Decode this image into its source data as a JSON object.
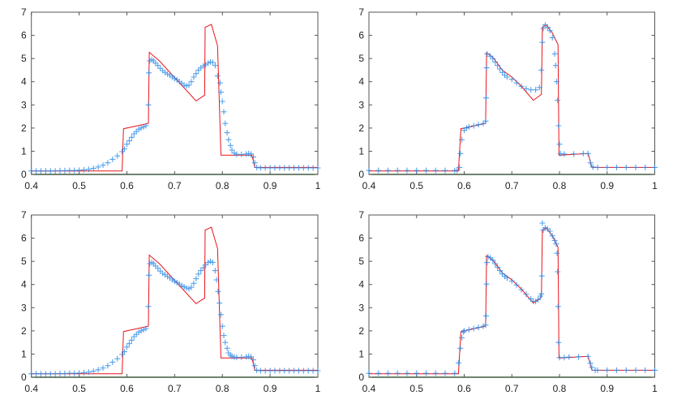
{
  "chart_data": [
    {
      "type": "line+scatter",
      "panel": "top-left",
      "xlim": [
        0.4,
        1.0
      ],
      "ylim": [
        0,
        7
      ],
      "xticks": [
        0.4,
        0.5,
        0.6,
        0.7,
        0.8,
        0.9,
        1
      ],
      "yticks": [
        0,
        1,
        2,
        3,
        4,
        5,
        6,
        7
      ],
      "grid": false,
      "colors": {
        "line": "#e8141c",
        "markers": "#2b8be8"
      },
      "line": {
        "x": [
          0.4,
          0.59,
          0.593,
          0.645,
          0.647,
          0.668,
          0.745,
          0.763,
          0.764,
          0.777,
          0.79,
          0.797,
          0.862,
          0.868,
          1.0
        ],
        "y": [
          0.15,
          0.15,
          1.97,
          2.2,
          5.27,
          4.9,
          3.17,
          3.42,
          6.35,
          6.47,
          5.55,
          0.83,
          0.83,
          0.3,
          0.3
        ]
      },
      "markers": {
        "x": [
          0.4,
          0.41,
          0.42,
          0.43,
          0.44,
          0.45,
          0.46,
          0.47,
          0.48,
          0.49,
          0.5,
          0.51,
          0.52,
          0.53,
          0.54,
          0.55,
          0.56,
          0.57,
          0.58,
          0.59,
          0.595,
          0.6,
          0.605,
          0.61,
          0.615,
          0.62,
          0.625,
          0.63,
          0.635,
          0.64,
          0.645,
          0.646,
          0.648,
          0.652,
          0.656,
          0.66,
          0.665,
          0.67,
          0.675,
          0.68,
          0.685,
          0.69,
          0.695,
          0.7,
          0.705,
          0.71,
          0.715,
          0.72,
          0.725,
          0.73,
          0.735,
          0.74,
          0.745,
          0.75,
          0.755,
          0.76,
          0.765,
          0.77,
          0.775,
          0.78,
          0.785,
          0.79,
          0.795,
          0.797,
          0.8,
          0.803,
          0.806,
          0.81,
          0.813,
          0.817,
          0.82,
          0.825,
          0.83,
          0.84,
          0.85,
          0.855,
          0.86,
          0.865,
          0.868,
          0.872,
          0.88,
          0.89,
          0.9,
          0.91,
          0.92,
          0.93,
          0.94,
          0.95,
          0.96,
          0.97,
          0.98,
          0.99,
          1.0
        ],
        "y": [
          0.15,
          0.15,
          0.15,
          0.15,
          0.15,
          0.15,
          0.16,
          0.16,
          0.17,
          0.17,
          0.18,
          0.2,
          0.22,
          0.26,
          0.32,
          0.4,
          0.5,
          0.65,
          0.8,
          0.98,
          1.1,
          1.3,
          1.45,
          1.6,
          1.75,
          1.85,
          1.95,
          2.0,
          2.05,
          2.1,
          3.0,
          4.38,
          4.9,
          4.95,
          4.9,
          4.8,
          4.7,
          4.58,
          4.48,
          4.4,
          4.33,
          4.27,
          4.2,
          4.14,
          4.08,
          4.0,
          3.93,
          3.85,
          3.82,
          3.85,
          4.0,
          4.2,
          4.35,
          4.5,
          4.6,
          4.68,
          4.73,
          4.8,
          4.85,
          4.83,
          4.7,
          4.25,
          3.95,
          3.55,
          3.15,
          2.7,
          2.2,
          1.8,
          1.5,
          1.25,
          1.05,
          0.92,
          0.87,
          0.86,
          0.88,
          0.9,
          0.88,
          0.75,
          0.5,
          0.3,
          0.28,
          0.28,
          0.28,
          0.28,
          0.28,
          0.28,
          0.28,
          0.28,
          0.28,
          0.28,
          0.28,
          0.28,
          0.28
        ]
      }
    },
    {
      "type": "line+scatter",
      "panel": "top-right",
      "xlim": [
        0.4,
        1.0
      ],
      "ylim": [
        0,
        7
      ],
      "xticks": [
        0.4,
        0.5,
        0.6,
        0.7,
        0.8,
        0.9,
        1
      ],
      "yticks": [
        0,
        1,
        2,
        3,
        4,
        5,
        6,
        7
      ],
      "grid": false,
      "colors": {
        "line": "#e8141c",
        "markers": "#2b8be8"
      },
      "line": {
        "x": [
          0.4,
          0.588,
          0.593,
          0.645,
          0.647,
          0.66,
          0.68,
          0.7,
          0.72,
          0.745,
          0.762,
          0.764,
          0.772,
          0.785,
          0.797,
          0.799,
          0.86,
          0.868,
          1.0
        ],
        "y": [
          0.15,
          0.15,
          1.97,
          2.2,
          5.25,
          5.05,
          4.5,
          4.2,
          3.8,
          3.2,
          3.45,
          6.35,
          6.45,
          6.1,
          5.6,
          0.83,
          0.9,
          0.3,
          0.3
        ]
      },
      "markers": {
        "x": [
          0.4,
          0.42,
          0.44,
          0.46,
          0.48,
          0.5,
          0.52,
          0.54,
          0.56,
          0.58,
          0.585,
          0.59,
          0.592,
          0.595,
          0.6,
          0.605,
          0.61,
          0.62,
          0.63,
          0.64,
          0.645,
          0.646,
          0.647,
          0.648,
          0.655,
          0.66,
          0.665,
          0.67,
          0.675,
          0.68,
          0.685,
          0.69,
          0.7,
          0.71,
          0.72,
          0.73,
          0.74,
          0.75,
          0.758,
          0.762,
          0.764,
          0.766,
          0.77,
          0.775,
          0.78,
          0.785,
          0.79,
          0.792,
          0.794,
          0.796,
          0.798,
          0.8,
          0.802,
          0.81,
          0.83,
          0.85,
          0.86,
          0.865,
          0.87,
          0.88,
          0.9,
          0.92,
          0.94,
          0.96,
          0.98,
          1.0
        ],
        "y": [
          0.17,
          0.17,
          0.17,
          0.17,
          0.17,
          0.17,
          0.17,
          0.17,
          0.17,
          0.17,
          0.18,
          0.3,
          0.9,
          1.5,
          1.9,
          2.0,
          2.05,
          2.1,
          2.15,
          2.2,
          2.3,
          3.3,
          4.6,
          5.2,
          5.1,
          5.0,
          4.85,
          4.7,
          4.55,
          4.4,
          4.28,
          4.2,
          4.1,
          3.95,
          3.8,
          3.7,
          3.65,
          3.65,
          3.75,
          4.5,
          5.7,
          6.3,
          6.45,
          6.35,
          6.2,
          5.9,
          5.2,
          4.7,
          4.0,
          3.2,
          2.1,
          1.3,
          0.9,
          0.88,
          0.88,
          0.9,
          0.9,
          0.5,
          0.32,
          0.3,
          0.3,
          0.3,
          0.3,
          0.3,
          0.3,
          0.3
        ]
      }
    },
    {
      "type": "line+scatter",
      "panel": "bottom-left",
      "xlim": [
        0.4,
        1.0
      ],
      "ylim": [
        0,
        7
      ],
      "xticks": [
        0.4,
        0.5,
        0.6,
        0.7,
        0.8,
        0.9,
        1
      ],
      "yticks": [
        0,
        1,
        2,
        3,
        4,
        5,
        6,
        7
      ],
      "grid": false,
      "colors": {
        "line": "#e8141c",
        "markers": "#2b8be8"
      },
      "line": {
        "x": [
          0.4,
          0.59,
          0.593,
          0.645,
          0.647,
          0.668,
          0.745,
          0.763,
          0.764,
          0.777,
          0.79,
          0.797,
          0.862,
          0.868,
          1.0
        ],
        "y": [
          0.15,
          0.15,
          1.97,
          2.2,
          5.27,
          4.9,
          3.17,
          3.42,
          6.35,
          6.47,
          5.55,
          0.83,
          0.83,
          0.3,
          0.3
        ]
      },
      "markers": {
        "x": [
          0.4,
          0.41,
          0.42,
          0.43,
          0.44,
          0.45,
          0.46,
          0.47,
          0.48,
          0.49,
          0.5,
          0.51,
          0.52,
          0.53,
          0.54,
          0.55,
          0.56,
          0.57,
          0.58,
          0.59,
          0.595,
          0.6,
          0.605,
          0.61,
          0.615,
          0.62,
          0.625,
          0.63,
          0.635,
          0.64,
          0.645,
          0.646,
          0.648,
          0.652,
          0.656,
          0.66,
          0.665,
          0.67,
          0.675,
          0.68,
          0.685,
          0.69,
          0.695,
          0.7,
          0.705,
          0.71,
          0.715,
          0.72,
          0.725,
          0.73,
          0.735,
          0.74,
          0.745,
          0.75,
          0.755,
          0.76,
          0.765,
          0.77,
          0.775,
          0.78,
          0.785,
          0.788,
          0.791,
          0.794,
          0.797,
          0.8,
          0.803,
          0.806,
          0.81,
          0.813,
          0.817,
          0.82,
          0.825,
          0.83,
          0.84,
          0.85,
          0.855,
          0.86,
          0.865,
          0.868,
          0.872,
          0.88,
          0.89,
          0.9,
          0.91,
          0.92,
          0.93,
          0.94,
          0.95,
          0.96,
          0.97,
          0.98,
          0.99,
          1.0
        ],
        "y": [
          0.15,
          0.15,
          0.15,
          0.15,
          0.15,
          0.15,
          0.16,
          0.16,
          0.17,
          0.17,
          0.18,
          0.2,
          0.22,
          0.26,
          0.32,
          0.4,
          0.5,
          0.65,
          0.8,
          0.98,
          1.1,
          1.3,
          1.45,
          1.6,
          1.75,
          1.85,
          1.95,
          2.0,
          2.05,
          2.1,
          3.05,
          4.4,
          4.9,
          4.95,
          4.9,
          4.8,
          4.7,
          4.58,
          4.48,
          4.42,
          4.35,
          4.28,
          4.2,
          4.14,
          4.08,
          4.02,
          3.95,
          3.9,
          3.85,
          3.82,
          3.88,
          4.05,
          4.25,
          4.45,
          4.6,
          4.72,
          4.85,
          4.95,
          5.0,
          4.95,
          4.6,
          4.2,
          3.7,
          3.2,
          2.7,
          2.2,
          1.8,
          1.5,
          1.25,
          1.05,
          0.95,
          0.9,
          0.87,
          0.86,
          0.86,
          0.88,
          0.9,
          0.88,
          0.75,
          0.5,
          0.3,
          0.28,
          0.28,
          0.28,
          0.28,
          0.28,
          0.28,
          0.28,
          0.28,
          0.28,
          0.28,
          0.28,
          0.28,
          0.28
        ]
      }
    },
    {
      "type": "line+scatter",
      "panel": "bottom-right",
      "xlim": [
        0.4,
        1.0
      ],
      "ylim": [
        0,
        7
      ],
      "xticks": [
        0.4,
        0.5,
        0.6,
        0.7,
        0.8,
        0.9,
        1
      ],
      "yticks": [
        0,
        1,
        2,
        3,
        4,
        5,
        6,
        7
      ],
      "grid": false,
      "colors": {
        "line": "#e8141c",
        "markers": "#2b8be8"
      },
      "line": {
        "x": [
          0.4,
          0.588,
          0.593,
          0.645,
          0.647,
          0.66,
          0.68,
          0.7,
          0.72,
          0.745,
          0.762,
          0.764,
          0.772,
          0.785,
          0.797,
          0.799,
          0.86,
          0.868,
          1.0
        ],
        "y": [
          0.15,
          0.15,
          1.97,
          2.2,
          5.25,
          5.05,
          4.5,
          4.2,
          3.8,
          3.2,
          3.45,
          6.35,
          6.45,
          6.1,
          5.6,
          0.83,
          0.9,
          0.3,
          0.3
        ]
      },
      "markers": {
        "x": [
          0.4,
          0.42,
          0.44,
          0.46,
          0.48,
          0.5,
          0.52,
          0.54,
          0.56,
          0.58,
          0.588,
          0.592,
          0.595,
          0.598,
          0.6,
          0.61,
          0.62,
          0.63,
          0.64,
          0.645,
          0.646,
          0.647,
          0.648,
          0.65,
          0.655,
          0.66,
          0.665,
          0.67,
          0.675,
          0.68,
          0.685,
          0.69,
          0.7,
          0.71,
          0.72,
          0.73,
          0.74,
          0.745,
          0.75,
          0.755,
          0.76,
          0.762,
          0.763,
          0.764,
          0.766,
          0.77,
          0.775,
          0.78,
          0.785,
          0.79,
          0.793,
          0.795,
          0.796,
          0.797,
          0.798,
          0.8,
          0.81,
          0.82,
          0.84,
          0.86,
          0.865,
          0.868,
          0.875,
          0.88,
          0.9,
          0.92,
          0.94,
          0.96,
          0.98,
          1.0
        ],
        "y": [
          0.17,
          0.17,
          0.17,
          0.17,
          0.17,
          0.17,
          0.17,
          0.17,
          0.17,
          0.17,
          0.62,
          1.25,
          1.7,
          1.95,
          2.0,
          2.05,
          2.1,
          2.15,
          2.2,
          2.25,
          2.65,
          4.02,
          4.95,
          5.2,
          5.15,
          5.05,
          4.9,
          4.75,
          4.6,
          4.45,
          4.35,
          4.28,
          4.15,
          3.98,
          3.78,
          3.58,
          3.38,
          3.28,
          3.27,
          3.35,
          3.5,
          3.6,
          4.37,
          6.65,
          6.35,
          6.45,
          6.4,
          6.3,
          6.1,
          5.9,
          5.75,
          5.35,
          4.55,
          3.05,
          1.5,
          0.85,
          0.85,
          0.87,
          0.88,
          0.9,
          0.6,
          0.42,
          0.3,
          0.3,
          0.3,
          0.3,
          0.3,
          0.3,
          0.3,
          0.3
        ]
      }
    }
  ]
}
